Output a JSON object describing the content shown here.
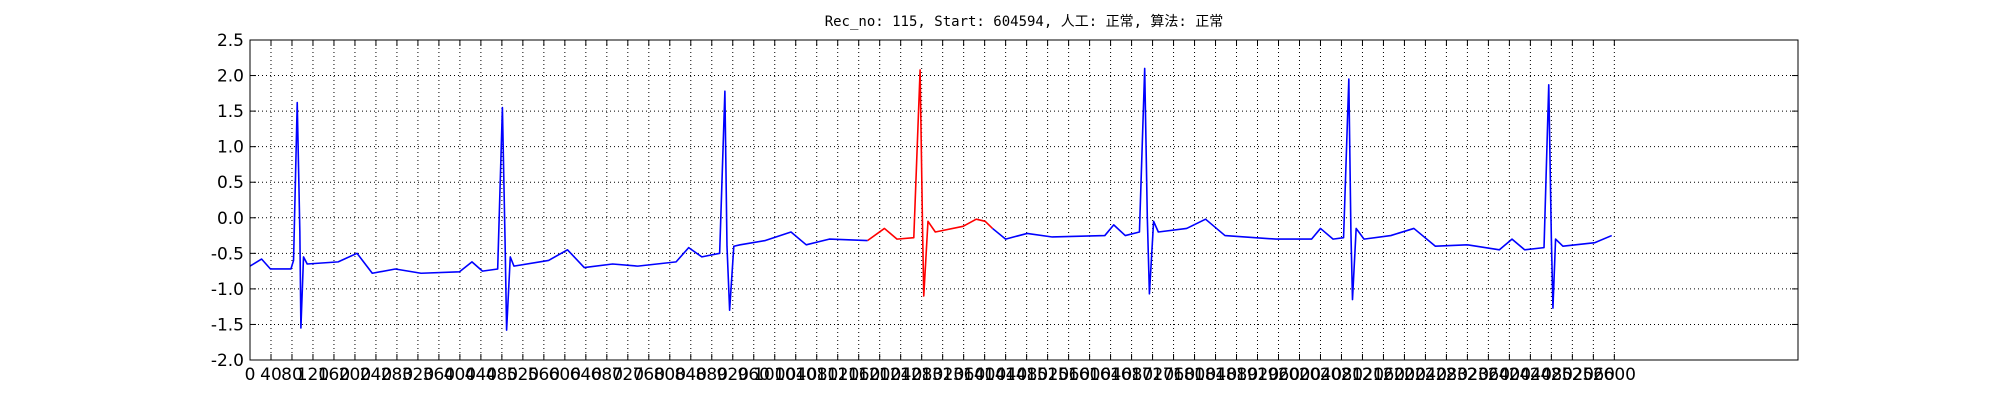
{
  "chart_data": {
    "type": "line",
    "title": "Rec_no: 115, Start: 604594, 人工: 正常, 算法: 正常",
    "xlim": [
      0,
      2950
    ],
    "ylim": [
      -2,
      2.5
    ],
    "xticks": [
      0,
      40,
      80,
      120,
      160,
      200,
      240,
      280,
      320,
      360,
      400,
      440,
      480,
      520,
      560,
      600,
      640,
      680,
      720,
      760,
      800,
      840,
      880,
      920,
      960,
      1000,
      1040,
      1080,
      1120,
      1160,
      1200,
      1240,
      1280,
      1320,
      1360,
      1400,
      1440,
      1480,
      1520,
      1560,
      1600,
      1640,
      1680,
      1720,
      1760,
      1800,
      1840,
      1880,
      1920,
      1960,
      2000,
      2040,
      2080,
      2120,
      2160,
      2200,
      2240,
      2280,
      2320,
      2360,
      2400,
      2440,
      2480,
      2520,
      2560,
      2600
    ],
    "yticks": [
      {
        "value": -2,
        "label": "-2.0"
      },
      -1.5,
      {
        "value": -1,
        "label": "-1.0"
      },
      -0.5,
      {
        "value": 0,
        "label": "0.0"
      },
      0.5,
      {
        "value": 1,
        "label": "1.0"
      },
      1.5,
      {
        "value": 2,
        "label": "2.0"
      },
      2.5
    ],
    "grid": true,
    "series": [
      {
        "color": "#0000ff",
        "x": [
          0,
          22,
          39,
          78,
          83,
          90,
          95,
          97,
          102,
          109,
          168,
          204,
          233,
          277,
          326,
          399,
          423,
          443,
          472,
          481,
          486,
          489,
          496,
          503,
          569,
          605,
          637,
          691,
          739,
          812,
          836,
          861,
          895,
          905,
          909,
          914,
          922,
          934,
          982,
          1031,
          1060,
          1104,
          1177
        ],
        "values": [
          -0.68,
          -0.58,
          -0.72,
          -0.72,
          -0.6,
          1.62,
          -0.2,
          -1.55,
          -0.55,
          -0.65,
          -0.62,
          -0.5,
          -0.78,
          -0.72,
          -0.78,
          -0.76,
          -0.62,
          -0.75,
          -0.72,
          1.55,
          -0.3,
          -1.58,
          -0.55,
          -0.68,
          -0.6,
          -0.45,
          -0.7,
          -0.65,
          -0.68,
          -0.62,
          -0.42,
          -0.55,
          -0.5,
          1.78,
          -0.4,
          -1.3,
          -0.4,
          -0.38,
          -0.32,
          -0.2,
          -0.38,
          -0.3,
          -0.32
        ]
      },
      {
        "color": "#ff0000",
        "x": [
          1177,
          1209,
          1233,
          1265,
          1277,
          1282,
          1284,
          1292,
          1306,
          1359,
          1384,
          1401,
          1415
        ],
        "values": [
          -0.32,
          -0.15,
          -0.3,
          -0.28,
          2.08,
          -0.3,
          -1.1,
          -0.05,
          -0.2,
          -0.12,
          -0.02,
          -0.05,
          -0.15
        ]
      },
      {
        "color": "#0000ff",
        "x": [
          1415,
          1440,
          1481,
          1529,
          1629,
          1646,
          1668,
          1695,
          1705,
          1710,
          1714,
          1722,
          1731,
          1785,
          1821,
          1858,
          1955,
          2023,
          2040,
          2064,
          2084,
          2094,
          2098,
          2101,
          2108,
          2123,
          2174,
          2218,
          2259,
          2320,
          2381,
          2405,
          2429,
          2466,
          2475,
          2480,
          2483,
          2488,
          2502,
          2563,
          2595
        ],
        "values": [
          -0.15,
          -0.3,
          -0.22,
          -0.27,
          -0.25,
          -0.1,
          -0.25,
          -0.2,
          2.1,
          0.0,
          -1.07,
          -0.05,
          -0.2,
          -0.15,
          -0.02,
          -0.25,
          -0.3,
          -0.3,
          -0.15,
          -0.3,
          -0.28,
          1.95,
          -0.2,
          -1.15,
          -0.15,
          -0.3,
          -0.25,
          -0.15,
          -0.4,
          -0.38,
          -0.45,
          -0.3,
          -0.45,
          -0.42,
          1.87,
          -0.3,
          -1.27,
          -0.3,
          -0.4,
          -0.35,
          -0.25
        ]
      }
    ]
  }
}
